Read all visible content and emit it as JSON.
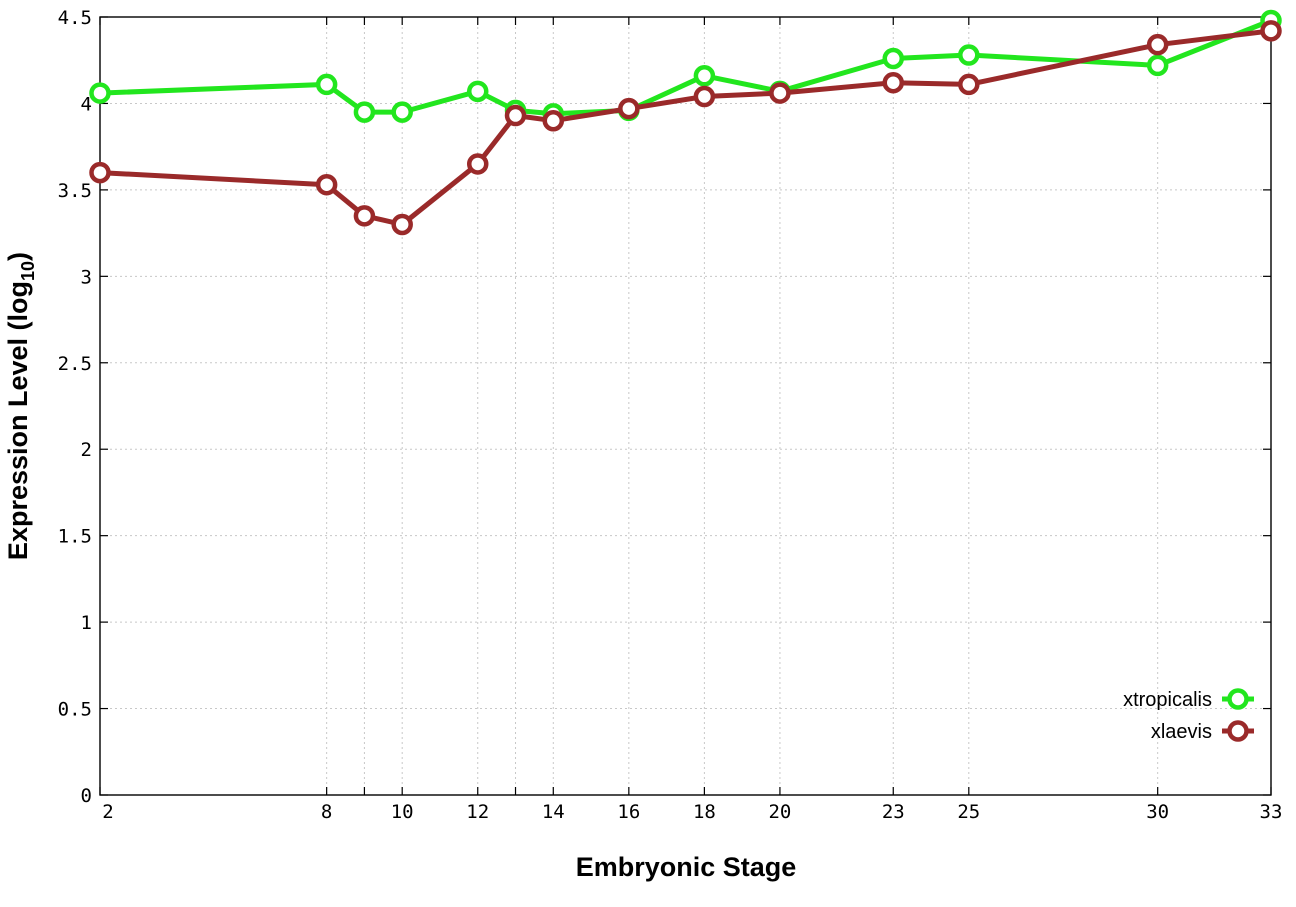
{
  "chart_data": {
    "type": "line",
    "title": "",
    "xlabel": "Embryonic Stage",
    "ylabel_main": "Expression Level (log",
    "ylabel_sub": "10",
    "ylabel_close": ")",
    "x_ticks": [
      2,
      8,
      10,
      12,
      14,
      16,
      18,
      20,
      23,
      25,
      30,
      33
    ],
    "y_ticks": [
      "0",
      "0.5",
      "1",
      "1.5",
      "2",
      "2.5",
      "3",
      "3.5",
      "4",
      "4.5"
    ],
    "ylim": [
      0,
      4.5
    ],
    "x_positions": [
      2,
      8,
      9,
      10,
      12,
      13,
      14,
      16,
      18,
      20,
      23,
      25,
      30,
      33
    ],
    "grid": true,
    "legend_position": "bottom-right",
    "series": [
      {
        "name": "xtropicalis",
        "color": "#22e61e",
        "x": [
          2,
          8,
          9,
          10,
          12,
          13,
          14,
          16,
          18,
          20,
          23,
          25,
          30,
          33
        ],
        "values": [
          4.06,
          4.11,
          3.95,
          3.95,
          4.07,
          3.96,
          3.94,
          3.96,
          4.16,
          4.07,
          4.26,
          4.28,
          4.22,
          4.48
        ]
      },
      {
        "name": "xlaevis",
        "color": "#9a2a2a",
        "x": [
          2,
          8,
          9,
          10,
          12,
          13,
          14,
          16,
          18,
          20,
          23,
          25,
          30,
          33
        ],
        "values": [
          3.6,
          3.53,
          3.35,
          3.3,
          3.65,
          3.93,
          3.9,
          3.97,
          4.04,
          4.06,
          4.12,
          4.11,
          4.34,
          4.42
        ]
      }
    ]
  }
}
